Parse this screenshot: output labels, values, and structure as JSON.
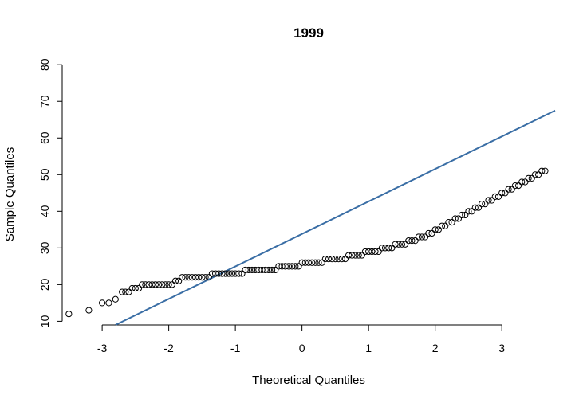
{
  "chart_data": {
    "type": "scatter",
    "title": "1999",
    "xlabel": "Theoretical Quantiles",
    "ylabel": "Sample Quantiles",
    "xlim": [
      -3.6,
      3.8
    ],
    "ylim": [
      9.0,
      82.0
    ],
    "x_ticks": [
      "-3",
      "-2",
      "-1",
      "0",
      "1",
      "2",
      "3"
    ],
    "y_ticks": [
      "10",
      "20",
      "30",
      "40",
      "50",
      "60",
      "70",
      "80"
    ],
    "grid": false,
    "point_style": "open-circle",
    "point_color": "#000000",
    "reference_line": {
      "color": "#3a6ea5",
      "x": [
        -2.8,
        3.8
      ],
      "y": [
        9.0,
        67.5
      ]
    },
    "points": [
      [
        -3.5,
        12
      ],
      [
        -3.2,
        13
      ],
      [
        -3.0,
        15
      ],
      [
        -2.9,
        15
      ],
      [
        -2.8,
        16
      ],
      [
        -2.7,
        18
      ],
      [
        -2.65,
        18
      ],
      [
        -2.6,
        18
      ],
      [
        -2.55,
        19
      ],
      [
        -2.5,
        19
      ],
      [
        -2.45,
        19
      ],
      [
        -2.4,
        20
      ],
      [
        -2.35,
        20
      ],
      [
        -2.3,
        20
      ],
      [
        -2.25,
        20
      ],
      [
        -2.2,
        20
      ],
      [
        -2.15,
        20
      ],
      [
        -2.1,
        20
      ],
      [
        -2.05,
        20
      ],
      [
        -2.0,
        20
      ],
      [
        -1.95,
        20
      ],
      [
        -1.9,
        21
      ],
      [
        -1.85,
        21
      ],
      [
        -1.8,
        22
      ],
      [
        -1.75,
        22
      ],
      [
        -1.7,
        22
      ],
      [
        -1.65,
        22
      ],
      [
        -1.6,
        22
      ],
      [
        -1.55,
        22
      ],
      [
        -1.5,
        22
      ],
      [
        -1.45,
        22
      ],
      [
        -1.4,
        22
      ],
      [
        -1.35,
        23
      ],
      [
        -1.3,
        23
      ],
      [
        -1.25,
        23
      ],
      [
        -1.2,
        23
      ],
      [
        -1.15,
        23
      ],
      [
        -1.1,
        23
      ],
      [
        -1.05,
        23
      ],
      [
        -1.0,
        23
      ],
      [
        -0.95,
        23
      ],
      [
        -0.9,
        23
      ],
      [
        -0.85,
        24
      ],
      [
        -0.8,
        24
      ],
      [
        -0.75,
        24
      ],
      [
        -0.7,
        24
      ],
      [
        -0.65,
        24
      ],
      [
        -0.6,
        24
      ],
      [
        -0.55,
        24
      ],
      [
        -0.5,
        24
      ],
      [
        -0.45,
        24
      ],
      [
        -0.4,
        24
      ],
      [
        -0.35,
        25
      ],
      [
        -0.3,
        25
      ],
      [
        -0.25,
        25
      ],
      [
        -0.2,
        25
      ],
      [
        -0.15,
        25
      ],
      [
        -0.1,
        25
      ],
      [
        -0.05,
        25
      ],
      [
        0.0,
        26
      ],
      [
        0.05,
        26
      ],
      [
        0.1,
        26
      ],
      [
        0.15,
        26
      ],
      [
        0.2,
        26
      ],
      [
        0.25,
        26
      ],
      [
        0.3,
        26
      ],
      [
        0.35,
        27
      ],
      [
        0.4,
        27
      ],
      [
        0.45,
        27
      ],
      [
        0.5,
        27
      ],
      [
        0.55,
        27
      ],
      [
        0.6,
        27
      ],
      [
        0.65,
        27
      ],
      [
        0.7,
        28
      ],
      [
        0.75,
        28
      ],
      [
        0.8,
        28
      ],
      [
        0.85,
        28
      ],
      [
        0.9,
        28
      ],
      [
        0.95,
        29
      ],
      [
        1.0,
        29
      ],
      [
        1.05,
        29
      ],
      [
        1.1,
        29
      ],
      [
        1.15,
        29
      ],
      [
        1.2,
        30
      ],
      [
        1.25,
        30
      ],
      [
        1.3,
        30
      ],
      [
        1.35,
        30
      ],
      [
        1.4,
        31
      ],
      [
        1.45,
        31
      ],
      [
        1.5,
        31
      ],
      [
        1.55,
        31
      ],
      [
        1.6,
        32
      ],
      [
        1.65,
        32
      ],
      [
        1.7,
        32
      ],
      [
        1.75,
        33
      ],
      [
        1.8,
        33
      ],
      [
        1.85,
        33
      ],
      [
        1.9,
        34
      ],
      [
        1.95,
        34
      ],
      [
        2.0,
        35
      ],
      [
        2.05,
        35
      ],
      [
        2.1,
        36
      ],
      [
        2.15,
        36
      ],
      [
        2.2,
        37
      ],
      [
        2.25,
        37
      ],
      [
        2.3,
        38
      ],
      [
        2.35,
        38
      ],
      [
        2.4,
        39
      ],
      [
        2.45,
        39
      ],
      [
        2.5,
        40
      ],
      [
        2.55,
        40
      ],
      [
        2.6,
        41
      ],
      [
        2.65,
        41
      ],
      [
        2.7,
        42
      ],
      [
        2.75,
        42
      ],
      [
        2.8,
        43
      ],
      [
        2.85,
        43
      ],
      [
        2.9,
        44
      ],
      [
        2.95,
        44
      ],
      [
        3.0,
        45
      ],
      [
        3.05,
        45
      ],
      [
        3.1,
        46
      ],
      [
        3.15,
        46
      ],
      [
        3.2,
        47
      ],
      [
        3.25,
        47
      ],
      [
        3.3,
        48
      ],
      [
        3.35,
        48
      ],
      [
        3.4,
        49
      ],
      [
        3.45,
        49
      ],
      [
        3.5,
        50
      ],
      [
        3.55,
        50
      ],
      [
        3.6,
        51
      ],
      [
        3.65,
        51
      ]
    ]
  }
}
